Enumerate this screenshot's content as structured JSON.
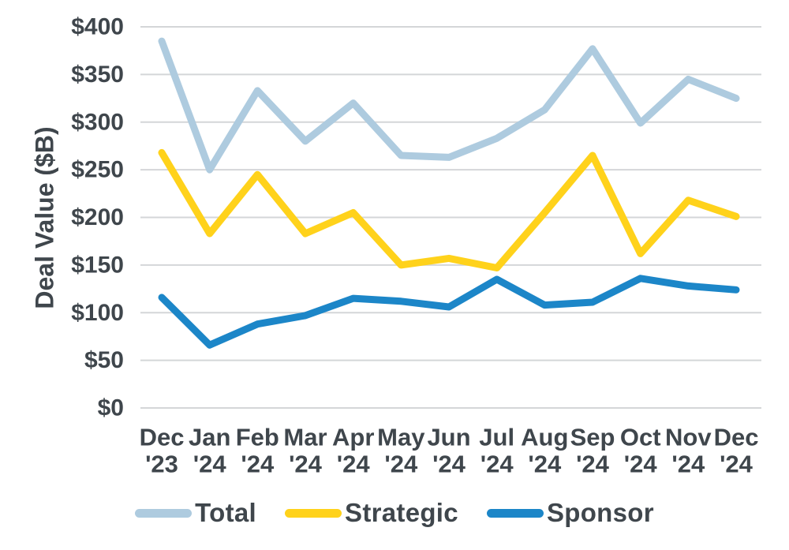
{
  "colors": {
    "text": "#3F464C",
    "gridline": "#D4D6D8",
    "background": "#FFFFFF",
    "total": "#AECBDF",
    "strategic": "#FFD21B",
    "sponsor": "#1C86C8"
  },
  "chart_data": {
    "type": "line",
    "title": "",
    "xlabel": "",
    "ylabel": "Deal Value ($B)",
    "ylim": [
      0,
      400
    ],
    "ytick_step": 50,
    "grid": "horizontal",
    "legend_position": "bottom",
    "y_tick_values": [
      0,
      50,
      100,
      150,
      200,
      250,
      300,
      350,
      400
    ],
    "y_ticks": [
      "$0",
      "$50",
      "$100",
      "$150",
      "$200",
      "$250",
      "$300",
      "$350",
      "$400"
    ],
    "categories": [
      "Dec '23",
      "Jan '24",
      "Feb '24",
      "Mar '24",
      "Apr '24",
      "May '24",
      "Jun '24",
      "Jul '24",
      "Aug '24",
      "Sep '24",
      "Oct '24",
      "Nov '24",
      "Dec '24"
    ],
    "series": [
      {
        "name": "Total",
        "color": "#AECBDF",
        "values": [
          385,
          250,
          333,
          280,
          320,
          265,
          263,
          283,
          313,
          377,
          299,
          345,
          325
        ]
      },
      {
        "name": "Strategic",
        "color": "#FFD21B",
        "values": [
          268,
          183,
          245,
          183,
          205,
          150,
          157,
          147,
          205,
          265,
          162,
          218,
          201
        ]
      },
      {
        "name": "Sponsor",
        "color": "#1C86C8",
        "values": [
          116,
          66,
          88,
          97,
          115,
          112,
          106,
          135,
          108,
          111,
          136,
          128,
          124
        ]
      }
    ]
  }
}
